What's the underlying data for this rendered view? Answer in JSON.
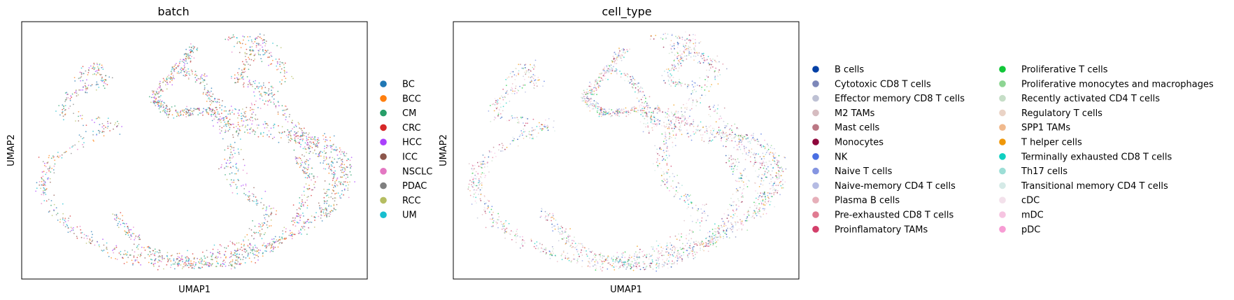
{
  "chart_data": [
    {
      "type": "scatter",
      "title": "batch",
      "xlabel": "UMAP1",
      "ylabel": "UMAP2",
      "ticks": "none",
      "grid": false,
      "legend_position": "right",
      "series": [
        {
          "name": "BC",
          "color": "#1f77b4"
        },
        {
          "name": "BCC",
          "color": "#ff7f0e"
        },
        {
          "name": "CM",
          "color": "#279e68"
        },
        {
          "name": "CRC",
          "color": "#d62728"
        },
        {
          "name": "HCC",
          "color": "#aa40fc"
        },
        {
          "name": "ICC",
          "color": "#8c564b"
        },
        {
          "name": "NSCLC",
          "color": "#e377c2"
        },
        {
          "name": "PDAC",
          "color": "#7f7f7f"
        },
        {
          "name": "RCC",
          "color": "#b5bd61"
        },
        {
          "name": "UM",
          "color": "#17becf"
        }
      ]
    },
    {
      "type": "scatter",
      "title": "cell_type",
      "xlabel": "UMAP1",
      "ylabel": "UMAP2",
      "ticks": "none",
      "grid": false,
      "legend_position": "right",
      "series": [
        {
          "name": "B cells",
          "color": "#023fa5"
        },
        {
          "name": "Cytotoxic CD8 T cells",
          "color": "#7d87b9"
        },
        {
          "name": "Effector memory CD8 T cells",
          "color": "#bec1d4"
        },
        {
          "name": "M2 TAMs",
          "color": "#d6bcc0"
        },
        {
          "name": "Mast cells",
          "color": "#bb7784"
        },
        {
          "name": "Monocytes",
          "color": "#8e063b"
        },
        {
          "name": "NK",
          "color": "#4a6fe3"
        },
        {
          "name": "Naive T cells",
          "color": "#8595e1"
        },
        {
          "name": "Naive-memory CD4 T cells",
          "color": "#b5bbe3"
        },
        {
          "name": "Plasma B cells",
          "color": "#e6afb9"
        },
        {
          "name": "Pre-exhausted CD8 T cells",
          "color": "#e07b91"
        },
        {
          "name": "Proinflamatory TAMs",
          "color": "#d33f6a"
        },
        {
          "name": "Proliferative T cells",
          "color": "#11c638"
        },
        {
          "name": "Proliferative monocytes and macrophages",
          "color": "#8dd593"
        },
        {
          "name": "Recently activated CD4 T cells",
          "color": "#c6dec7"
        },
        {
          "name": "Regulatory T cells",
          "color": "#ead3c6"
        },
        {
          "name": "SPP1 TAMs",
          "color": "#f0b98d"
        },
        {
          "name": "T helper cells",
          "color": "#ef9708"
        },
        {
          "name": "Terminally exhausted CD8 T cells",
          "color": "#0fcfc0"
        },
        {
          "name": "Th17 cells",
          "color": "#9cded6"
        },
        {
          "name": "Transitional memory CD4 T cells",
          "color": "#d5eae7"
        },
        {
          "name": "cDC",
          "color": "#f3e1eb"
        },
        {
          "name": "mDC",
          "color": "#f6c4e1"
        },
        {
          "name": "pDC",
          "color": "#f79cd4"
        }
      ]
    }
  ]
}
